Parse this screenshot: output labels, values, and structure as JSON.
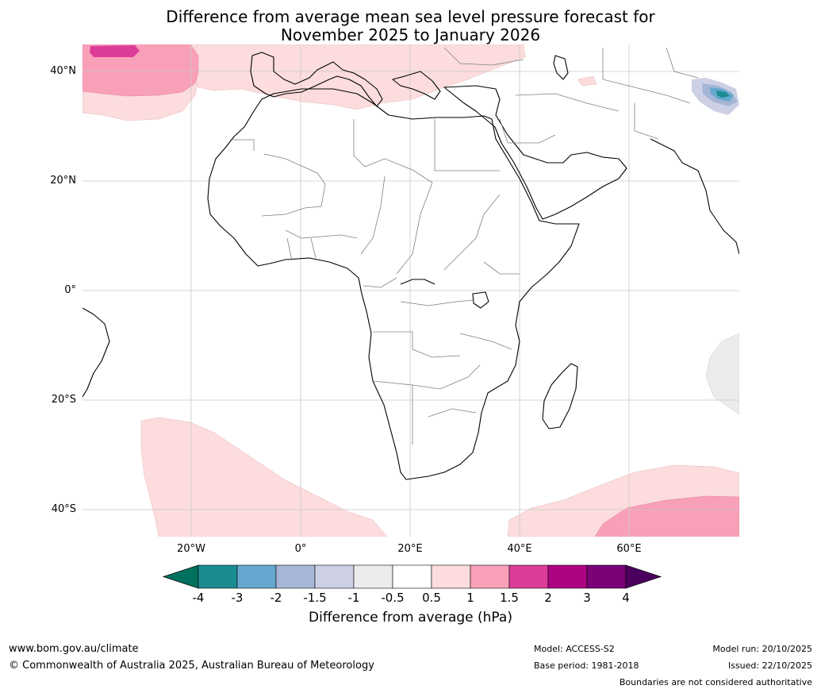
{
  "title": {
    "line1": "Difference from average mean sea level pressure forecast for",
    "line2": "November 2025 to January 2026"
  },
  "map": {
    "lat_labels": [
      "40°N",
      "20°N",
      "0°",
      "20°S",
      "40°S"
    ],
    "lon_labels": [
      "20°W",
      "0°",
      "20°E",
      "40°E",
      "60°E"
    ]
  },
  "colorbar": {
    "ticks": [
      "-4",
      "-3",
      "-2",
      "-1.5",
      "-1",
      "-0.5",
      "0.5",
      "1",
      "1.5",
      "2",
      "3",
      "4"
    ],
    "colors": [
      "#1b8c90",
      "#65a8cf",
      "#a5b6d6",
      "#cdd0e4",
      "#ececee",
      "#ffffff",
      "#fcdcdc",
      "#f9a0b9",
      "#dc3d98",
      "#ae0483",
      "#790278"
    ],
    "under_color": "#00715e",
    "over_color": "#4b0060",
    "label": "Difference from average (hPa)"
  },
  "footer": {
    "website": "www.bom.gov.au/climate",
    "copyright": "© Commonwealth of Australia 2025, Australian Bureau of Meteorology",
    "model": "Model: ACCESS-S2",
    "base_period": "Base period: 1981-2018",
    "model_run": "Model run: 20/10/2025",
    "issued": "Issued: 22/10/2025",
    "disclaimer": "Boundaries are not considered authoritative"
  }
}
